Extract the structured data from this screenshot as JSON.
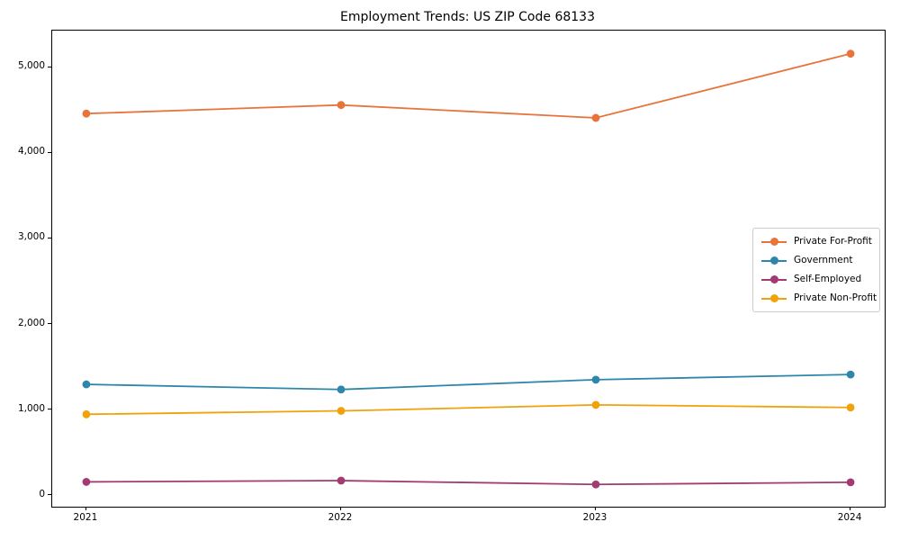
{
  "figure": {
    "background": "#ffffff",
    "spine_color": "#000000",
    "text_color": "#000000"
  },
  "chart_data": {
    "type": "line",
    "title": "Employment Trends: US ZIP Code 68133",
    "xlabel": "",
    "ylabel": "",
    "categories": [
      "2021",
      "2022",
      "2023",
      "2024"
    ],
    "series": [
      {
        "name": "Private For-Profit",
        "color": "#E8743B",
        "values": [
          4460,
          4560,
          4410,
          5160
        ]
      },
      {
        "name": "Government",
        "color": "#2E86AB",
        "values": [
          1295,
          1235,
          1350,
          1410
        ]
      },
      {
        "name": "Self-Employed",
        "color": "#A23B72",
        "values": [
          155,
          170,
          125,
          150
        ]
      },
      {
        "name": "Private Non-Profit",
        "color": "#F1A208",
        "values": [
          945,
          985,
          1055,
          1025
        ]
      }
    ],
    "ylim": [
      -135,
      5430
    ],
    "yticks": [
      0,
      1000,
      2000,
      3000,
      4000,
      5000
    ],
    "ytick_labels": [
      "0",
      "1,000",
      "2,000",
      "3,000",
      "4,000",
      "5,000"
    ],
    "xtick_labels": [
      "2021",
      "2022",
      "2023",
      "2024"
    ],
    "grid": false,
    "legend_position": "right-middle",
    "marker": "circle"
  }
}
